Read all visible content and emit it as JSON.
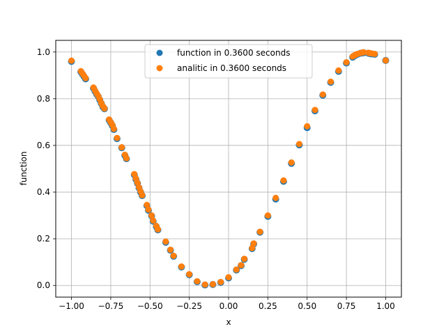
{
  "chart_data": {
    "type": "scatter",
    "xlabel": "x",
    "ylabel": "function",
    "xlim": [
      -1.1,
      1.1
    ],
    "ylim": [
      -0.05,
      1.05
    ],
    "grid": true,
    "legend_position": "top-center",
    "x_ticks": [
      -1.0,
      -0.75,
      -0.5,
      -0.25,
      0.0,
      0.25,
      0.5,
      0.75,
      1.0
    ],
    "x_tick_labels": [
      "−1.00",
      "−0.75",
      "−0.50",
      "−0.25",
      "0.00",
      "0.25",
      "0.50",
      "0.75",
      "1.00"
    ],
    "y_ticks": [
      0.0,
      0.2,
      0.4,
      0.6,
      0.8,
      1.0
    ],
    "y_tick_labels": [
      "0.0",
      "0.2",
      "0.4",
      "0.6",
      "0.8",
      "1.0"
    ],
    "series": [
      {
        "name": "function in 0.3600 seconds",
        "color": "#1f77b4",
        "x": [
          -1.0,
          -0.94,
          -0.93,
          -0.92,
          -0.91,
          -0.86,
          -0.85,
          -0.84,
          -0.83,
          -0.82,
          -0.81,
          -0.8,
          -0.79,
          -0.76,
          -0.75,
          -0.74,
          -0.73,
          -0.71,
          -0.68,
          -0.66,
          -0.65,
          -0.6,
          -0.59,
          -0.58,
          -0.57,
          -0.56,
          -0.55,
          -0.52,
          -0.51,
          -0.49,
          -0.48,
          -0.46,
          -0.45,
          -0.4,
          -0.37,
          -0.35,
          -0.3,
          -0.25,
          -0.2,
          -0.15,
          -0.1,
          -0.05,
          0.0,
          0.05,
          0.08,
          0.1,
          0.15,
          0.16,
          0.2,
          0.25,
          0.3,
          0.35,
          0.4,
          0.45,
          0.5,
          0.55,
          0.6,
          0.65,
          0.7,
          0.75,
          0.79,
          0.8,
          0.81,
          0.82,
          0.84,
          0.85,
          0.86,
          0.89,
          0.9,
          0.91,
          0.93,
          1.0
        ],
        "y": [
          0.96,
          0.915,
          0.905,
          0.895,
          0.885,
          0.845,
          0.832,
          0.82,
          0.81,
          0.795,
          0.78,
          0.765,
          0.757,
          0.708,
          0.697,
          0.685,
          0.668,
          0.629,
          0.59,
          0.557,
          0.543,
          0.474,
          0.455,
          0.438,
          0.418,
          0.4,
          0.385,
          0.342,
          0.322,
          0.298,
          0.275,
          0.252,
          0.238,
          0.185,
          0.151,
          0.125,
          0.079,
          0.046,
          0.016,
          0.002,
          0.004,
          0.013,
          0.032,
          0.066,
          0.085,
          0.112,
          0.158,
          0.178,
          0.228,
          0.296,
          0.37,
          0.446,
          0.523,
          0.602,
          0.676,
          0.748,
          0.815,
          0.87,
          0.917,
          0.953,
          0.978,
          0.983,
          0.987,
          0.99,
          0.995,
          0.996,
          0.997,
          0.995,
          0.993,
          0.992,
          0.99,
          0.964
        ]
      },
      {
        "name": "analitic in 0.3600 seconds",
        "color": "#ff7f0e",
        "x": [
          -1.0,
          -0.94,
          -0.93,
          -0.92,
          -0.91,
          -0.86,
          -0.85,
          -0.84,
          -0.83,
          -0.82,
          -0.81,
          -0.8,
          -0.79,
          -0.76,
          -0.75,
          -0.74,
          -0.73,
          -0.71,
          -0.68,
          -0.66,
          -0.65,
          -0.6,
          -0.59,
          -0.58,
          -0.57,
          -0.56,
          -0.55,
          -0.52,
          -0.51,
          -0.49,
          -0.48,
          -0.46,
          -0.45,
          -0.4,
          -0.37,
          -0.35,
          -0.3,
          -0.25,
          -0.2,
          -0.15,
          -0.1,
          -0.05,
          0.0,
          0.05,
          0.08,
          0.1,
          0.15,
          0.16,
          0.2,
          0.25,
          0.3,
          0.35,
          0.4,
          0.45,
          0.5,
          0.55,
          0.6,
          0.65,
          0.7,
          0.75,
          0.79,
          0.8,
          0.81,
          0.82,
          0.84,
          0.85,
          0.86,
          0.89,
          0.9,
          0.91,
          0.93,
          1.0
        ],
        "y": [
          0.963,
          0.918,
          0.908,
          0.898,
          0.888,
          0.848,
          0.835,
          0.823,
          0.812,
          0.798,
          0.782,
          0.768,
          0.758,
          0.711,
          0.699,
          0.688,
          0.671,
          0.632,
          0.592,
          0.56,
          0.545,
          0.477,
          0.458,
          0.44,
          0.42,
          0.403,
          0.387,
          0.345,
          0.325,
          0.3,
          0.278,
          0.255,
          0.24,
          0.188,
          0.153,
          0.127,
          0.081,
          0.048,
          0.018,
          0.004,
          0.005,
          0.015,
          0.035,
          0.068,
          0.087,
          0.114,
          0.16,
          0.18,
          0.23,
          0.3,
          0.375,
          0.45,
          0.527,
          0.606,
          0.682,
          0.752,
          0.818,
          0.873,
          0.921,
          0.956,
          0.981,
          0.985,
          0.989,
          0.992,
          0.996,
          0.998,
          0.999,
          0.997,
          0.995,
          0.994,
          0.992,
          0.964
        ]
      }
    ]
  }
}
